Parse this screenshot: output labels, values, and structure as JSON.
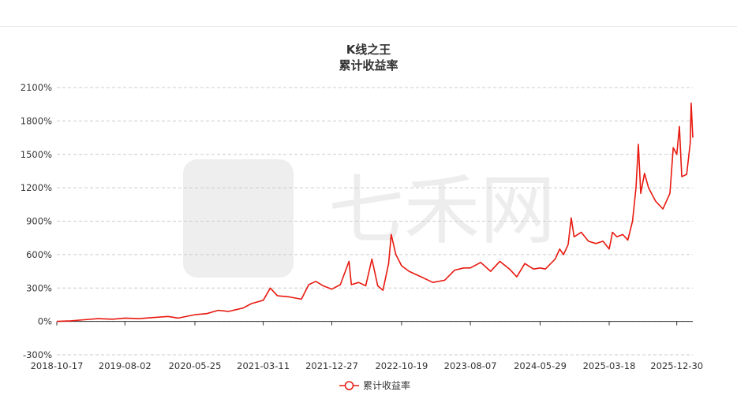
{
  "chart_data": {
    "type": "line",
    "title": "K线之王",
    "subtitle": "累计收益率",
    "xlabel": "",
    "ylabel": "",
    "ylim": [
      -300,
      2100
    ],
    "y_ticks": [
      -300,
      0,
      300,
      600,
      900,
      1200,
      1500,
      1800,
      2100
    ],
    "y_unit": "%",
    "x_ticks": [
      "2018-10-17",
      "2019-08-02",
      "2020-05-25",
      "2021-03-11",
      "2021-12-27",
      "2022-10-19",
      "2023-08-07",
      "2024-05-29",
      "2025-03-18",
      "2025-12-30"
    ],
    "grid": true,
    "legend": "bottom-center",
    "line_color": "#e8190f",
    "watermark": "七禾网",
    "series": [
      {
        "name": "累计收益率",
        "points": [
          [
            "2018-10-17",
            0
          ],
          [
            "2018-12-15",
            5
          ],
          [
            "2019-02-10",
            15
          ],
          [
            "2019-04-10",
            25
          ],
          [
            "2019-06-10",
            20
          ],
          [
            "2019-08-02",
            30
          ],
          [
            "2019-10-01",
            25
          ],
          [
            "2019-12-01",
            35
          ],
          [
            "2020-02-01",
            45
          ],
          [
            "2020-03-15",
            30
          ],
          [
            "2020-05-25",
            60
          ],
          [
            "2020-07-15",
            70
          ],
          [
            "2020-09-01",
            100
          ],
          [
            "2020-10-15",
            90
          ],
          [
            "2020-12-15",
            120
          ],
          [
            "2021-01-20",
            160
          ],
          [
            "2021-03-11",
            190
          ],
          [
            "2021-04-10",
            300
          ],
          [
            "2021-05-10",
            230
          ],
          [
            "2021-07-01",
            220
          ],
          [
            "2021-08-20",
            200
          ],
          [
            "2021-09-20",
            330
          ],
          [
            "2021-10-20",
            360
          ],
          [
            "2021-11-20",
            320
          ],
          [
            "2021-12-27",
            290
          ],
          [
            "2022-02-01",
            330
          ],
          [
            "2022-03-10",
            540
          ],
          [
            "2022-03-20",
            330
          ],
          [
            "2022-04-20",
            350
          ],
          [
            "2022-05-20",
            320
          ],
          [
            "2022-06-15",
            560
          ],
          [
            "2022-07-10",
            320
          ],
          [
            "2022-08-01",
            280
          ],
          [
            "2022-08-25",
            520
          ],
          [
            "2022-09-05",
            780
          ],
          [
            "2022-09-25",
            600
          ],
          [
            "2022-10-19",
            500
          ],
          [
            "2022-11-20",
            450
          ],
          [
            "2023-01-10",
            400
          ],
          [
            "2023-03-01",
            350
          ],
          [
            "2023-04-20",
            370
          ],
          [
            "2023-06-01",
            460
          ],
          [
            "2023-07-10",
            480
          ],
          [
            "2023-08-07",
            480
          ],
          [
            "2023-09-20",
            530
          ],
          [
            "2023-11-01",
            450
          ],
          [
            "2023-12-10",
            540
          ],
          [
            "2024-01-20",
            470
          ],
          [
            "2024-02-20",
            400
          ],
          [
            "2024-03-25",
            520
          ],
          [
            "2024-05-01",
            470
          ],
          [
            "2024-05-29",
            480
          ],
          [
            "2024-06-20",
            470
          ],
          [
            "2024-08-01",
            560
          ],
          [
            "2024-08-20",
            650
          ],
          [
            "2024-09-05",
            600
          ],
          [
            "2024-09-25",
            690
          ],
          [
            "2024-10-08",
            930
          ],
          [
            "2024-10-20",
            760
          ],
          [
            "2024-11-20",
            800
          ],
          [
            "2024-12-20",
            720
          ],
          [
            "2025-01-20",
            700
          ],
          [
            "2025-02-20",
            720
          ],
          [
            "2025-03-18",
            650
          ],
          [
            "2025-04-01",
            800
          ],
          [
            "2025-04-20",
            760
          ],
          [
            "2025-05-15",
            780
          ],
          [
            "2025-06-05",
            730
          ],
          [
            "2025-06-25",
            900
          ],
          [
            "2025-07-10",
            1200
          ],
          [
            "2025-07-20",
            1590
          ],
          [
            "2025-07-30",
            1150
          ],
          [
            "2025-08-15",
            1330
          ],
          [
            "2025-09-01",
            1200
          ],
          [
            "2025-10-01",
            1080
          ],
          [
            "2025-11-01",
            1010
          ],
          [
            "2025-12-01",
            1150
          ],
          [
            "2025-12-15",
            1560
          ],
          [
            "2025-12-30",
            1500
          ],
          [
            "2026-01-10",
            1750
          ],
          [
            "2026-01-20",
            1300
          ],
          [
            "2026-02-10",
            1320
          ],
          [
            "2026-02-25",
            1600
          ],
          [
            "2026-03-01",
            1960
          ],
          [
            "2026-03-08",
            1650
          ]
        ]
      }
    ]
  }
}
